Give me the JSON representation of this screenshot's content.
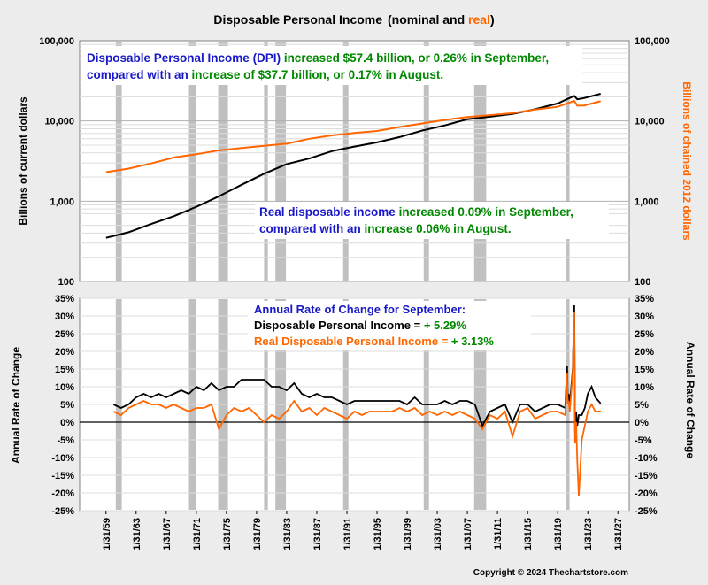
{
  "title": {
    "main": "Disposable Personal Income",
    "nominal_and": "(nominal and ",
    "real": "real",
    "close": ")"
  },
  "copyright": "Copyright © 2024 Thechartstore.com",
  "colors": {
    "nominal": "#000000",
    "real": "#ff6600",
    "recession": "#c0c0c0",
    "blue": "#1818c8",
    "green": "#008800",
    "background": "#ececec",
    "plot": "#ffffff"
  },
  "top_panel": {
    "left_axis_label": "Billions of current dollars",
    "right_axis_label": "Billions of chained 2012 dollars",
    "annotation1": {
      "line1": [
        {
          "text": "Disposable Personal Income (DPI) ",
          "color": "blue"
        },
        {
          "text": "increased $57.4 billion, or 0.26% in September,",
          "color": "green"
        }
      ],
      "line2": [
        {
          "text": "compared with an ",
          "color": "blue"
        },
        {
          "text": "increase of $37.7 billion, or 0.17% in August.",
          "color": "green"
        }
      ]
    },
    "annotation2": {
      "line1": [
        {
          "text": "Real disposable income ",
          "color": "blue"
        },
        {
          "text": "increased 0.09% in September,",
          "color": "green"
        }
      ],
      "line2": [
        {
          "text": "compared with an ",
          "color": "blue"
        },
        {
          "text": "increase 0.06% in August.",
          "color": "green"
        }
      ]
    }
  },
  "bottom_panel": {
    "left_axis_label": "Annual Rate of Change",
    "right_axis_label": "Annual Rate of Change",
    "legend_title": "Annual Rate of Change for September:",
    "legend_nominal_prefix": "Disposable Personal Income = ",
    "legend_nominal_value": "+ 5.29%",
    "legend_real_prefix": "Real Disposable Personal Income = ",
    "legend_real_value": "+ 3.13%"
  },
  "chart_data": [
    {
      "type": "line",
      "scale": "log",
      "ylim": [
        100,
        100000
      ],
      "y_ticks": [
        {
          "v": 100,
          "label": "100"
        },
        {
          "v": 1000,
          "label": "1,000"
        },
        {
          "v": 10000,
          "label": "10,000"
        },
        {
          "v": 100000,
          "label": "100,000"
        }
      ],
      "x_range": [
        1955.5,
        2028.5
      ],
      "series": [
        {
          "name": "Disposable Personal Income",
          "color": "nominal",
          "axis": "left",
          "x": [
            1959,
            1962,
            1965,
            1968,
            1971,
            1974,
            1977,
            1980,
            1983,
            1986,
            1989,
            1992,
            1995,
            1998,
            2001,
            2004,
            2007,
            2010,
            2013,
            2016,
            2019,
            2020.3,
            2021.2,
            2021.6,
            2022.5,
            2024.7
          ],
          "y": [
            350,
            410,
            520,
            650,
            850,
            1150,
            1600,
            2200,
            2900,
            3400,
            4200,
            4800,
            5400,
            6300,
            7600,
            8800,
            10500,
            11300,
            12200,
            14000,
            16500,
            18800,
            20500,
            18600,
            19300,
            21800
          ]
        },
        {
          "name": "Real Disposable Personal Income",
          "color": "real",
          "axis": "right",
          "x": [
            1959,
            1962,
            1965,
            1968,
            1971,
            1974,
            1977,
            1980,
            1983,
            1986,
            1989,
            1992,
            1995,
            1998,
            2001,
            2004,
            2007,
            2010,
            2013,
            2016,
            2019,
            2020.3,
            2021.2,
            2021.6,
            2022.5,
            2024.7
          ],
          "y": [
            2300,
            2550,
            2950,
            3500,
            3850,
            4300,
            4600,
            4900,
            5200,
            6000,
            6600,
            7100,
            7500,
            8400,
            9300,
            10300,
            11200,
            11800,
            12500,
            13900,
            15000,
            16600,
            17800,
            15500,
            15600,
            17600
          ]
        }
      ]
    },
    {
      "type": "line",
      "ylim": [
        -25,
        35
      ],
      "y_ticks": [
        -25,
        -20,
        -15,
        -10,
        -5,
        0,
        5,
        10,
        15,
        20,
        25,
        30,
        35
      ],
      "x_ticks": [
        "1/31/59",
        "1/31/63",
        "1/31/67",
        "1/31/71",
        "1/31/75",
        "1/31/79",
        "1/31/83",
        "1/31/87",
        "1/31/91",
        "1/31/95",
        "1/31/99",
        "1/31/03",
        "1/31/07",
        "1/31/11",
        "1/31/15",
        "1/31/19",
        "1/31/23",
        "1/31/27"
      ],
      "x_tick_years": [
        1959,
        1963,
        1967,
        1971,
        1975,
        1979,
        1983,
        1987,
        1991,
        1995,
        1999,
        2003,
        2007,
        2011,
        2015,
        2019,
        2023,
        2027
      ],
      "recessions": [
        [
          1960.3,
          1961.1
        ],
        [
          1969.9,
          1970.9
        ],
        [
          1973.9,
          1975.2
        ],
        [
          1980.0,
          1980.5
        ],
        [
          1981.5,
          1982.9
        ],
        [
          1990.5,
          1991.2
        ],
        [
          2001.2,
          2001.9
        ],
        [
          2007.9,
          2009.5
        ],
        [
          2020.1,
          2020.3
        ]
      ],
      "series": [
        {
          "name": "Disposable Personal Income",
          "color": "nominal",
          "x": [
            1960,
            1961,
            1962,
            1963,
            1964,
            1965,
            1966,
            1967,
            1968,
            1969,
            1970,
            1971,
            1972,
            1973,
            1974,
            1975,
            1976,
            1977,
            1978,
            1979,
            1980,
            1981,
            1982,
            1983,
            1984,
            1985,
            1986,
            1987,
            1988,
            1989,
            1990,
            1991,
            1992,
            1993,
            1994,
            1995,
            1996,
            1997,
            1998,
            1999,
            2000,
            2001,
            2002,
            2003,
            2004,
            2005,
            2006,
            2007,
            2008,
            2009,
            2010,
            2011,
            2012,
            2013,
            2014,
            2015,
            2016,
            2017,
            2018,
            2019,
            2020,
            2020.25,
            2020.33,
            2020.45,
            2020.6,
            2021.0,
            2021.2,
            2021.3,
            2021.45,
            2021.6,
            2021.8,
            2022.2,
            2022.6,
            2023.0,
            2023.5,
            2024.0,
            2024.7
          ],
          "y": [
            5,
            4,
            5,
            7,
            8,
            7,
            8,
            7,
            8,
            9,
            8,
            10,
            9,
            11,
            9,
            10,
            10,
            12,
            12,
            12,
            12,
            10,
            10,
            9,
            11,
            8,
            7,
            8,
            7,
            7,
            6,
            5,
            6,
            6,
            6,
            6,
            6,
            6,
            6,
            5,
            7,
            5,
            5,
            5,
            6,
            5,
            6,
            6,
            5,
            -1,
            3,
            4,
            5,
            0,
            5,
            5,
            3,
            4,
            5,
            5,
            4,
            16,
            7,
            8,
            5,
            15,
            33,
            -3,
            3,
            -1,
            2,
            2,
            4,
            8,
            10,
            7,
            5.3
          ]
        },
        {
          "name": "Real Disposable Personal Income",
          "color": "real",
          "x": [
            1960,
            1961,
            1962,
            1963,
            1964,
            1965,
            1966,
            1967,
            1968,
            1969,
            1970,
            1971,
            1972,
            1973,
            1974,
            1975,
            1976,
            1977,
            1978,
            1979,
            1980,
            1981,
            1982,
            1983,
            1984,
            1985,
            1986,
            1987,
            1988,
            1989,
            1990,
            1991,
            1992,
            1993,
            1994,
            1995,
            1996,
            1997,
            1998,
            1999,
            2000,
            2001,
            2002,
            2003,
            2004,
            2005,
            2006,
            2007,
            2008,
            2009,
            2010,
            2011,
            2012,
            2013,
            2014,
            2015,
            2016,
            2017,
            2018,
            2019,
            2020,
            2020.25,
            2020.33,
            2020.45,
            2020.6,
            2021.0,
            2021.2,
            2021.3,
            2021.45,
            2021.6,
            2021.8,
            2022.2,
            2022.6,
            2023.0,
            2023.5,
            2024.0,
            2024.7
          ],
          "y": [
            3,
            2,
            4,
            5,
            6,
            5,
            5,
            4,
            5,
            4,
            3,
            4,
            4,
            5,
            -2,
            2,
            4,
            3,
            4,
            2,
            0,
            2,
            1,
            3,
            6,
            3,
            4,
            2,
            4,
            3,
            2,
            1,
            3,
            2,
            3,
            3,
            3,
            3,
            4,
            3,
            4,
            2,
            3,
            2,
            3,
            2,
            3,
            2,
            1,
            -2,
            2,
            1,
            3,
            -4,
            3,
            4,
            1,
            2,
            3,
            3,
            2,
            14,
            5,
            6,
            3,
            14,
            31,
            -6,
            0,
            -11,
            -21,
            -5,
            -1,
            3,
            5,
            3,
            3.1
          ]
        }
      ]
    }
  ]
}
